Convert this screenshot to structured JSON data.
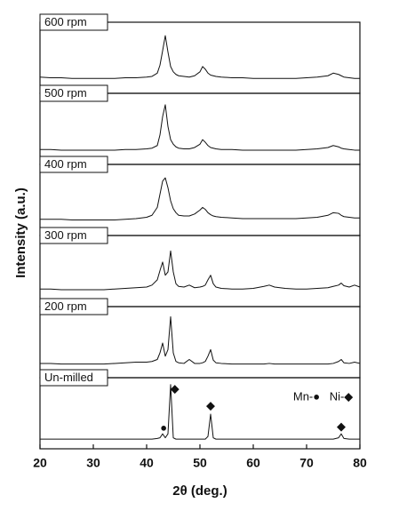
{
  "chart_data": {
    "type": "line",
    "x_label": "2θ (deg.)",
    "y_label": "Intensity (a.u.)",
    "x": [
      20,
      22,
      24,
      26,
      28,
      30,
      32,
      34,
      36,
      38,
      40,
      41,
      42,
      42.5,
      43,
      43.5,
      44,
      44.5,
      45,
      45.5,
      46,
      47,
      48,
      49,
      50,
      50.5,
      51,
      51.5,
      52,
      52.5,
      53,
      54,
      56,
      58,
      60,
      62,
      63,
      64,
      66,
      68,
      70,
      72,
      74,
      75,
      76,
      76.5,
      77,
      78,
      79,
      80
    ],
    "xlim": [
      20,
      80
    ],
    "xticks": [
      20,
      30,
      40,
      50,
      60,
      70,
      80
    ],
    "ylim": [
      0,
      100
    ],
    "color": "#111111",
    "series": [
      {
        "name": "600 rpm",
        "values": [
          22,
          21,
          21,
          20,
          20,
          20,
          20,
          20,
          21,
          21,
          22,
          23,
          28,
          40,
          62,
          85,
          60,
          38,
          30,
          26,
          24,
          23,
          22,
          24,
          30,
          38,
          34,
          28,
          25,
          24,
          23,
          22,
          21,
          21,
          20,
          20,
          20,
          20,
          20,
          20,
          21,
          22,
          24,
          28,
          26,
          24,
          22,
          21,
          20,
          20
        ]
      },
      {
        "name": "500 rpm",
        "values": [
          20,
          20,
          19,
          19,
          19,
          19,
          19,
          19,
          20,
          20,
          21,
          22,
          26,
          42,
          70,
          88,
          55,
          35,
          28,
          24,
          22,
          21,
          21,
          23,
          28,
          35,
          31,
          26,
          23,
          22,
          21,
          20,
          20,
          19,
          19,
          19,
          19,
          19,
          19,
          19,
          20,
          21,
          23,
          26,
          24,
          22,
          21,
          20,
          19,
          19
        ]
      },
      {
        "name": "400 rpm",
        "values": [
          22,
          22,
          22,
          21,
          21,
          21,
          21,
          21,
          22,
          23,
          25,
          28,
          40,
          60,
          80,
          85,
          70,
          50,
          38,
          32,
          28,
          27,
          27,
          30,
          36,
          40,
          37,
          32,
          29,
          27,
          26,
          25,
          24,
          23,
          23,
          23,
          23,
          23,
          23,
          23,
          24,
          25,
          28,
          32,
          31,
          28,
          26,
          25,
          24,
          24
        ]
      },
      {
        "name": "300 rpm",
        "values": [
          24,
          24,
          23,
          23,
          23,
          23,
          23,
          24,
          25,
          26,
          27,
          30,
          38,
          52,
          65,
          45,
          50,
          82,
          50,
          32,
          28,
          27,
          30,
          26,
          27,
          28,
          30,
          38,
          45,
          32,
          27,
          25,
          24,
          24,
          25,
          28,
          30,
          27,
          25,
          24,
          24,
          25,
          26,
          28,
          30,
          33,
          29,
          27,
          30,
          27
        ]
      },
      {
        "name": "200 rpm",
        "values": [
          19,
          19,
          18,
          18,
          18,
          18,
          18,
          19,
          20,
          21,
          21,
          22,
          25,
          35,
          50,
          30,
          40,
          90,
          35,
          22,
          20,
          19,
          25,
          19,
          19,
          20,
          22,
          30,
          40,
          24,
          20,
          19,
          18,
          18,
          18,
          18,
          19,
          18,
          18,
          18,
          18,
          18,
          18,
          19,
          22,
          25,
          20,
          19,
          21,
          19
        ]
      },
      {
        "name": "Un-milled",
        "values": [
          12,
          12,
          12,
          12,
          12,
          12,
          12,
          12,
          12,
          12,
          12,
          12,
          13,
          14,
          20,
          14,
          20,
          95,
          14,
          12,
          12,
          12,
          12,
          12,
          12,
          12,
          12,
          16,
          50,
          14,
          12,
          12,
          12,
          12,
          12,
          12,
          12,
          12,
          12,
          12,
          12,
          12,
          12,
          12,
          14,
          20,
          13,
          12,
          12,
          12
        ]
      }
    ],
    "peak_markers": [
      {
        "x": 43.2,
        "y": 28,
        "symbol": "●"
      },
      {
        "x": 45.3,
        "y": 88,
        "symbol": "◆"
      },
      {
        "x": 52,
        "y": 62,
        "symbol": "◆"
      },
      {
        "x": 76.5,
        "y": 30,
        "symbol": "◆"
      }
    ],
    "annotations": [
      "Mn-●",
      "Ni-◆"
    ]
  }
}
